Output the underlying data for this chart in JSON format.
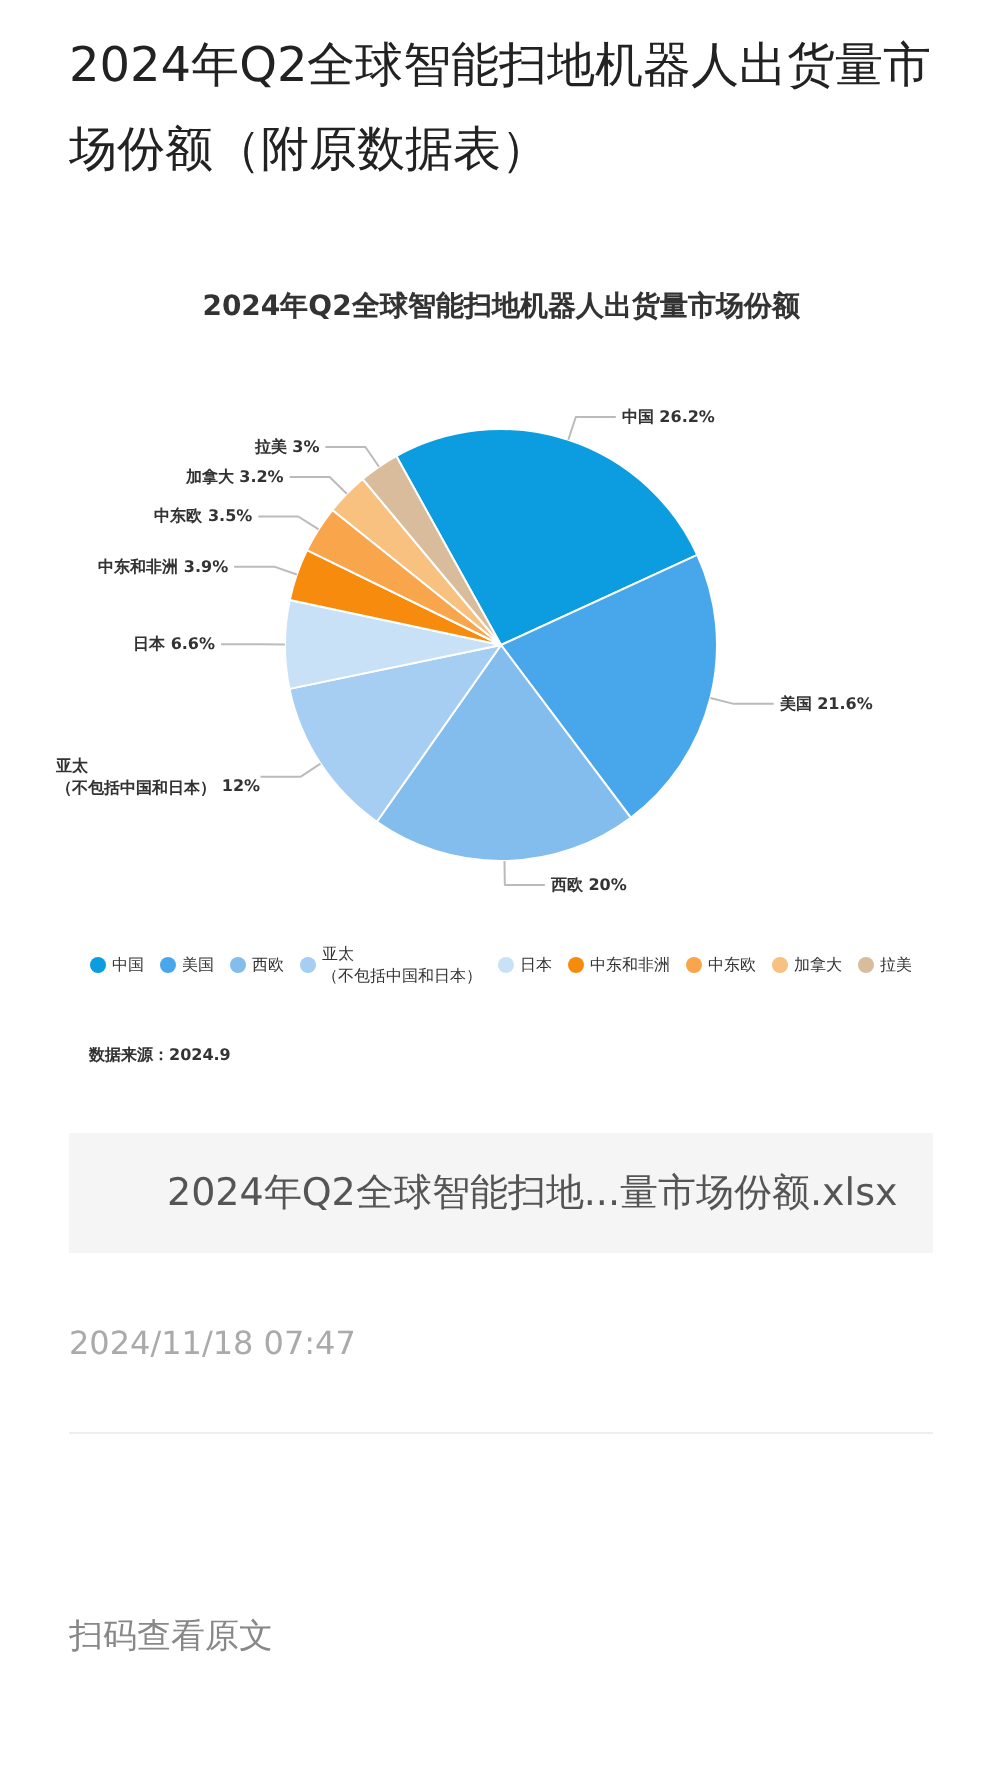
{
  "chart_data": {
    "type": "pie",
    "title": "2024年Q2全球智能扫地机器人出货量市场份额（附原数据表）",
    "subtitle": "2024年Q2全球智能扫地机器人出货量市场份额",
    "categories": [
      "中国",
      "美国",
      "西欧",
      "亚太（不包括中国和日本）",
      "日本",
      "中东和非洲",
      "中东欧",
      "加拿大",
      "拉美"
    ],
    "values": [
      26.2,
      21.6,
      20,
      12,
      6.6,
      3.9,
      3.5,
      3.2,
      3
    ],
    "value_labels": [
      "26.2%",
      "21.6%",
      "20%",
      "12%",
      "6.6%",
      "3.9%",
      "3.5%",
      "3.2%",
      "3%"
    ],
    "colors": [
      "#0c9ce0",
      "#48a7ea",
      "#82bdee",
      "#a6cdf2",
      "#c8e1f6",
      "#f68b0d",
      "#f8a54c",
      "#f9c17f",
      "#d9bc9c"
    ],
    "legend": "bottom",
    "annotations": [
      "数据来源：2024.9",
      "2024年Q2全球智能扫地...量市场份额.xlsx",
      "2024/11/18 07:47",
      "扫码查看原文"
    ]
  }
}
